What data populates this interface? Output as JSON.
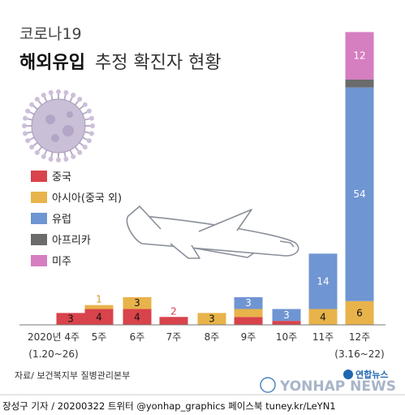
{
  "title": {
    "line1": "코로나19",
    "line2_bold": "해외유입",
    "line2_rest": "추정 확진자 현황"
  },
  "legend": [
    {
      "label": "중국",
      "color": "#d9434b"
    },
    {
      "label": "아시아(중국 외)",
      "color": "#e8b34a"
    },
    {
      "label": "유럽",
      "color": "#6f95d2"
    },
    {
      "label": "아프리카",
      "color": "#6b6b6b"
    },
    {
      "label": "미주",
      "color": "#d57ec0"
    }
  ],
  "source": "자료/ 보건복지부 질병관리본부",
  "credit": "장성구 기자 / 20200322  트위터 @yonhap_graphics  페이스북 tuney.kr/LeYN1",
  "watermark": {
    "brand": "연합뉴스",
    "text": "YONHAP NEWS"
  },
  "chart_data": {
    "type": "bar",
    "stacked": true,
    "categories": [
      "2020년 4주",
      "5주",
      "6주",
      "7주",
      "8주",
      "9주",
      "10주",
      "11주",
      "12주"
    ],
    "category_sublabels": [
      "(1.20~26)",
      "",
      "",
      "",
      "",
      "",
      "",
      "",
      "(3.16~22)"
    ],
    "series": [
      {
        "name": "중국",
        "color": "#d9434b",
        "values": [
          3,
          4,
          4,
          2,
          0,
          2,
          1,
          0,
          0
        ]
      },
      {
        "name": "아시아(중국 외)",
        "color": "#e8b34a",
        "values": [
          0,
          1,
          3,
          0,
          3,
          2,
          0,
          4,
          6
        ]
      },
      {
        "name": "유럽",
        "color": "#6f95d2",
        "values": [
          0,
          0,
          0,
          0,
          0,
          3,
          3,
          14,
          54
        ]
      },
      {
        "name": "아프리카",
        "color": "#6b6b6b",
        "values": [
          0,
          0,
          0,
          0,
          0,
          0,
          0,
          0,
          2
        ]
      },
      {
        "name": "미주",
        "color": "#d57ec0",
        "values": [
          0,
          0,
          0,
          0,
          0,
          0,
          0,
          0,
          12
        ]
      }
    ],
    "data_labels": [
      [
        "3",
        "",
        "",
        "",
        ""
      ],
      [
        "4",
        "1",
        "",
        "",
        ""
      ],
      [
        "4",
        "3",
        "",
        "",
        ""
      ],
      [
        "2",
        "",
        "",
        "",
        ""
      ],
      [
        "",
        "3",
        "",
        "",
        ""
      ],
      [
        "2",
        "2",
        "3",
        "",
        ""
      ],
      [
        "1",
        "",
        "3",
        "",
        ""
      ],
      [
        "",
        "4",
        "14",
        "",
        ""
      ],
      [
        "",
        "6",
        "54",
        "2",
        "12"
      ]
    ],
    "ylim": [
      0,
      78
    ],
    "grid": false,
    "legend_position": "left"
  }
}
